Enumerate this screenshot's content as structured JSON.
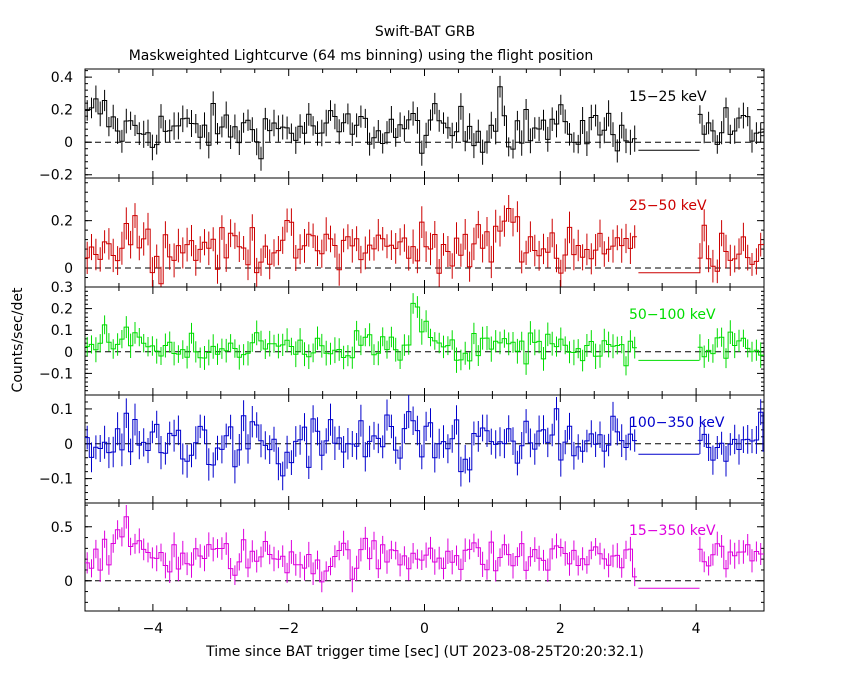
{
  "chart_data": {
    "type": "line",
    "title": "Swift-BAT GRB",
    "subtitle": "Maskweighted Lightcurve (64 ms binning) using the flight position",
    "xlabel": "Time since BAT trigger time [sec] (UT 2023-08-25T20:20:32.1)",
    "ylabel": "Counts/sec/det",
    "xlim": [
      -5,
      5
    ],
    "x_ticks": [
      -4,
      -2,
      0,
      2,
      4
    ],
    "x_tick_labels": [
      "−4",
      "−2",
      "0",
      "2",
      "4"
    ],
    "grid": false,
    "bin_width": 0.064,
    "gap": [
      3.15,
      4.05
    ],
    "panels": [
      {
        "name": "15-25 keV",
        "label": "15−25 keV",
        "color": "#000000",
        "ylim": [
          -0.22,
          0.45
        ],
        "yticks": [
          -0.2,
          0,
          0.2,
          0.4
        ],
        "ytick_labels": [
          "−0.2",
          "0",
          "0.2",
          "0.4"
        ],
        "level": 0.08,
        "noise": 0.07,
        "err": 0.07,
        "gap_level": -0.05,
        "features": [
          [
            1.12,
            0.22,
            0.05
          ],
          [
            -4.8,
            0.12,
            0.12
          ]
        ]
      },
      {
        "name": "25-50 keV",
        "label": "25−50 keV",
        "color": "#cc0000",
        "ylim": [
          -0.08,
          0.38
        ],
        "yticks": [
          0,
          0.2
        ],
        "ytick_labels": [
          "0",
          "0.2"
        ],
        "level": 0.09,
        "noise": 0.05,
        "err": 0.06,
        "gap_level": -0.02,
        "features": [
          [
            1.25,
            0.14,
            0.12
          ],
          [
            -4.3,
            0.08,
            0.1
          ],
          [
            1.5,
            -0.08,
            0.06
          ]
        ]
      },
      {
        "name": "50-100 keV",
        "label": "50−100 keV",
        "color": "#00dd00",
        "ylim": [
          -0.2,
          0.3
        ],
        "yticks": [
          -0.1,
          0,
          0.1,
          0.2,
          0.3
        ],
        "ytick_labels": [
          "−0.1",
          "0",
          "0.1",
          "0.2",
          "0.3"
        ],
        "level": 0.02,
        "noise": 0.04,
        "err": 0.05,
        "gap_level": -0.04,
        "features": [
          [
            -0.12,
            0.18,
            0.06
          ],
          [
            -4.3,
            0.12,
            0.07
          ],
          [
            0.1,
            0.06,
            0.15
          ]
        ]
      },
      {
        "name": "100-350 keV",
        "label": "100−350 keV",
        "color": "#0000cc",
        "ylim": [
          -0.17,
          0.14
        ],
        "yticks": [
          -0.1,
          0,
          0.1
        ],
        "ytick_labels": [
          "−0.1",
          "0",
          "0.1"
        ],
        "level": 0.0,
        "noise": 0.04,
        "err": 0.04,
        "gap_level": -0.03,
        "features": [
          [
            -2.1,
            -0.1,
            0.05
          ]
        ]
      },
      {
        "name": "15-350 keV",
        "label": "15−350 keV",
        "color": "#dd00dd",
        "ylim": [
          -0.28,
          0.72
        ],
        "yticks": [
          0,
          0.5
        ],
        "ytick_labels": [
          "0",
          "0.5"
        ],
        "level": 0.22,
        "noise": 0.09,
        "err": 0.1,
        "gap_level": -0.07,
        "features": [
          [
            -4.4,
            0.15,
            0.2
          ],
          [
            0.1,
            0.1,
            0.1
          ],
          [
            -1.5,
            -0.15,
            0.05
          ]
        ]
      }
    ]
  }
}
